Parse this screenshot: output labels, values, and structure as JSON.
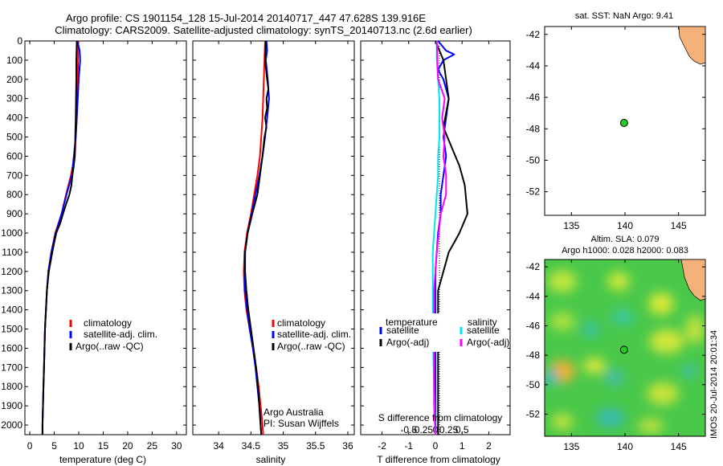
{
  "header": {
    "line1": "Argo profile: CS 1901154_128 15-Jul-2014 20140717_447 47.628S 139.916E",
    "line2": "Climatology: CARS2009. Satellite-adjusted climatology: synTS_20140713.nc (2.6d earlier)"
  },
  "colors": {
    "climatology": "#ff0000",
    "satellite": "#0000ff",
    "argo": "#000000",
    "cyan": "#00e5ee",
    "magenta": "#ff00ff",
    "float": "#22cc22",
    "land": "#f4b27a"
  },
  "chart_data": [
    {
      "type": "line",
      "xlabel": "temperature (deg C)",
      "ylim": [
        0,
        2050
      ],
      "y_ticks": [
        0,
        100,
        200,
        300,
        400,
        500,
        600,
        700,
        800,
        900,
        1000,
        1100,
        1200,
        1300,
        1400,
        1500,
        1600,
        1700,
        1800,
        1900,
        2000
      ],
      "xlim": [
        -1,
        32
      ],
      "x_ticks": [
        0,
        5,
        10,
        15,
        20,
        25,
        30
      ],
      "legend": {
        "placement": "lower-middle",
        "entries": [
          "climatology",
          "satellite-adj. clim.",
          "Argo(..raw -QC)"
        ]
      },
      "series": [
        {
          "name": "climatology",
          "color": "red",
          "points": [
            [
              9.9,
              0
            ],
            [
              9.8,
              200
            ],
            [
              9.6,
              400
            ],
            [
              9.4,
              500
            ],
            [
              9.2,
              600
            ],
            [
              8.4,
              700
            ],
            [
              7.4,
              800
            ],
            [
              6.5,
              900
            ],
            [
              5.2,
              1000
            ],
            [
              4.4,
              1100
            ],
            [
              3.8,
              1200
            ],
            [
              3.5,
              1300
            ],
            [
              3.3,
              1400
            ],
            [
              3.1,
              1500
            ],
            [
              3.0,
              1600
            ],
            [
              2.9,
              1700
            ],
            [
              2.8,
              1800
            ],
            [
              2.7,
              1900
            ],
            [
              2.6,
              2000
            ],
            [
              2.6,
              2050
            ]
          ]
        },
        {
          "name": "satellite-adj. clim.",
          "color": "blue",
          "points": [
            [
              9.7,
              0
            ],
            [
              10.2,
              50
            ],
            [
              10.3,
              100
            ],
            [
              10.0,
              200
            ],
            [
              9.8,
              300
            ],
            [
              9.6,
              400
            ],
            [
              9.4,
              500
            ],
            [
              9.0,
              600
            ],
            [
              8.6,
              700
            ],
            [
              7.5,
              800
            ],
            [
              6.5,
              900
            ],
            [
              5.3,
              1000
            ],
            [
              4.4,
              1100
            ],
            [
              3.8,
              1200
            ],
            [
              3.5,
              1300
            ],
            [
              3.3,
              1400
            ],
            [
              3.1,
              1500
            ],
            [
              3.0,
              1600
            ],
            [
              2.9,
              1700
            ],
            [
              2.8,
              1800
            ],
            [
              2.7,
              1900
            ],
            [
              2.6,
              2000
            ],
            [
              2.6,
              2050
            ]
          ]
        },
        {
          "name": "Argo(..raw -QC)",
          "color": "black",
          "points": [
            [
              9.6,
              0
            ],
            [
              9.5,
              100
            ],
            [
              9.5,
              200
            ],
            [
              9.4,
              400
            ],
            [
              9.3,
              500
            ],
            [
              9.2,
              600
            ],
            [
              9.0,
              650
            ],
            [
              8.7,
              700
            ],
            [
              8.5,
              750
            ],
            [
              8.1,
              800
            ],
            [
              7.4,
              850
            ],
            [
              6.8,
              900
            ],
            [
              6.2,
              950
            ],
            [
              5.4,
              1000
            ],
            [
              4.6,
              1100
            ],
            [
              3.9,
              1200
            ],
            [
              3.5,
              1300
            ],
            [
              3.3,
              1400
            ],
            [
              3.1,
              1500
            ],
            [
              3.0,
              1600
            ],
            [
              2.9,
              1700
            ],
            [
              2.8,
              1800
            ],
            [
              2.7,
              1900
            ],
            [
              2.6,
              2000
            ],
            [
              2.6,
              2050
            ]
          ]
        }
      ]
    },
    {
      "type": "line",
      "xlabel": "salinity",
      "ylim": [
        0,
        2050
      ],
      "xlim": [
        33.6,
        36.1
      ],
      "x_ticks": [
        34,
        34.5,
        35,
        35.5,
        36
      ],
      "legend": {
        "placement": "lower-middle",
        "entries": [
          "climatology",
          "satellite-adj. clim.",
          "Argo(..raw -QC)"
        ]
      },
      "annotations": [
        "Argo Australia",
        "PI: Susan Wijffels"
      ],
      "series": [
        {
          "name": "climatology",
          "color": "red",
          "points": [
            [
              34.72,
              0
            ],
            [
              34.71,
              100
            ],
            [
              34.7,
              200
            ],
            [
              34.69,
              300
            ],
            [
              34.68,
              400
            ],
            [
              34.66,
              500
            ],
            [
              34.64,
              600
            ],
            [
              34.6,
              700
            ],
            [
              34.55,
              800
            ],
            [
              34.5,
              900
            ],
            [
              34.44,
              1000
            ],
            [
              34.4,
              1100
            ],
            [
              34.39,
              1200
            ],
            [
              34.4,
              1300
            ],
            [
              34.43,
              1400
            ],
            [
              34.48,
              1500
            ],
            [
              34.53,
              1600
            ],
            [
              34.58,
              1700
            ],
            [
              34.62,
              1800
            ],
            [
              34.65,
              1900
            ],
            [
              34.68,
              2000
            ],
            [
              34.69,
              2050
            ]
          ]
        },
        {
          "name": "satellite-adj. clim.",
          "color": "blue",
          "points": [
            [
              34.74,
              0
            ],
            [
              34.75,
              50
            ],
            [
              34.73,
              100
            ],
            [
              34.76,
              200
            ],
            [
              34.78,
              300
            ],
            [
              34.75,
              400
            ],
            [
              34.72,
              500
            ],
            [
              34.68,
              600
            ],
            [
              34.63,
              700
            ],
            [
              34.57,
              800
            ],
            [
              34.51,
              900
            ],
            [
              34.45,
              1000
            ],
            [
              34.41,
              1100
            ],
            [
              34.4,
              1200
            ],
            [
              34.41,
              1300
            ],
            [
              34.44,
              1400
            ],
            [
              34.48,
              1500
            ],
            [
              34.53,
              1600
            ],
            [
              34.57,
              1700
            ],
            [
              34.6,
              1800
            ],
            [
              34.63,
              1900
            ],
            [
              34.65,
              2000
            ],
            [
              34.66,
              2050
            ]
          ]
        },
        {
          "name": "Argo(..raw -QC)",
          "color": "black",
          "points": [
            [
              34.73,
              0
            ],
            [
              34.72,
              100
            ],
            [
              34.75,
              200
            ],
            [
              34.77,
              250
            ],
            [
              34.74,
              300
            ],
            [
              34.75,
              350
            ],
            [
              34.72,
              400
            ],
            [
              34.74,
              450
            ],
            [
              34.71,
              500
            ],
            [
              34.68,
              600
            ],
            [
              34.64,
              700
            ],
            [
              34.6,
              800
            ],
            [
              34.52,
              900
            ],
            [
              34.45,
              1000
            ],
            [
              34.41,
              1100
            ],
            [
              34.41,
              1200
            ],
            [
              34.43,
              1300
            ],
            [
              34.46,
              1400
            ],
            [
              34.5,
              1500
            ],
            [
              34.54,
              1600
            ],
            [
              34.58,
              1700
            ],
            [
              34.61,
              1800
            ],
            [
              34.63,
              1900
            ],
            [
              34.65,
              2000
            ],
            [
              34.66,
              2050
            ]
          ]
        }
      ]
    },
    {
      "type": "line",
      "xlabel": "T difference from climatology",
      "top_label": "S difference from climatology",
      "ylim": [
        0,
        2050
      ],
      "xlim": [
        -2.8,
        2.8
      ],
      "x_ticks": [
        -2,
        -1,
        0,
        1,
        2
      ],
      "x2_ticks": [
        "-0.5",
        "-0.25",
        "0",
        "0.25",
        "0.5"
      ],
      "legend": {
        "placement": "lower-middle",
        "group_titles": [
          "temperature",
          "salinity"
        ],
        "entries": [
          "satellite",
          "Argo(-adj)",
          "satellite",
          "Argo(-adj)"
        ]
      },
      "series": [
        {
          "name": "satellite",
          "group": "temperature",
          "color": "blue",
          "points": [
            [
              0.1,
              0
            ],
            [
              0.4,
              50
            ],
            [
              0.7,
              70
            ],
            [
              0.3,
              100
            ],
            [
              0.1,
              150
            ],
            [
              0.3,
              200
            ],
            [
              0.5,
              300
            ],
            [
              0.4,
              400
            ],
            [
              0.3,
              500
            ],
            [
              0.4,
              600
            ],
            [
              0.3,
              700
            ],
            [
              0.2,
              800
            ],
            [
              0.2,
              900
            ],
            [
              0.1,
              1000
            ],
            [
              0.0,
              1200
            ],
            [
              0.0,
              1500
            ],
            [
              0.0,
              1800
            ],
            [
              0.0,
              2050
            ]
          ]
        },
        {
          "name": "Argo(-adj)",
          "group": "temperature",
          "color": "black",
          "points": [
            [
              0.0,
              0
            ],
            [
              0.3,
              100
            ],
            [
              0.5,
              300
            ],
            [
              0.3,
              450
            ],
            [
              0.6,
              550
            ],
            [
              0.9,
              650
            ],
            [
              1.1,
              750
            ],
            [
              1.2,
              900
            ],
            [
              0.9,
              1000
            ],
            [
              0.7,
              1050
            ],
            [
              0.5,
              1100
            ],
            [
              0.3,
              1200
            ],
            [
              0.1,
              1300
            ],
            [
              0.1,
              1500
            ],
            [
              0.1,
              1800
            ],
            [
              0.1,
              2050
            ]
          ]
        },
        {
          "name": "satellite",
          "group": "salinity",
          "color": "cyan",
          "points": [
            [
              0.05,
              0
            ],
            [
              0.05,
              100
            ],
            [
              0.1,
              200
            ],
            [
              0.15,
              300
            ],
            [
              0.15,
              400
            ],
            [
              0.15,
              500
            ],
            [
              0.1,
              600
            ],
            [
              0.1,
              700
            ],
            [
              0.0,
              900
            ],
            [
              -0.1,
              1100
            ],
            [
              -0.1,
              1300
            ],
            [
              -0.1,
              1500
            ],
            [
              -0.05,
              1800
            ],
            [
              0.0,
              2050
            ]
          ]
        },
        {
          "name": "Argo(-adj)",
          "group": "salinity",
          "color": "magenta",
          "points": [
            [
              0.05,
              0
            ],
            [
              0.1,
              200
            ],
            [
              0.35,
              300
            ],
            [
              0.25,
              400
            ],
            [
              0.35,
              500
            ],
            [
              0.3,
              600
            ],
            [
              0.4,
              700
            ],
            [
              0.4,
              800
            ],
            [
              0.2,
              900
            ],
            [
              0.05,
              1100
            ],
            [
              -0.05,
              1300
            ],
            [
              -0.05,
              1600
            ],
            [
              -0.05,
              1900
            ],
            [
              0.0,
              2050
            ]
          ]
        }
      ]
    },
    {
      "type": "scatter",
      "title": "sat. SST: NaN Argo: 9.41",
      "xlim": [
        132.5,
        147.5
      ],
      "ylim": [
        -53.5,
        -41.5
      ],
      "x_ticks": [
        135,
        140,
        145
      ],
      "y_ticks": [
        -42,
        -44,
        -46,
        -48,
        -50,
        -52
      ],
      "points": [
        [
          139.916,
          -47.628
        ]
      ]
    },
    {
      "type": "heatmap",
      "title_line1": "Altim. SLA: 0.079",
      "title_line2": "Argo h1000: 0.028 h2000: 0.083",
      "xlim": [
        132.5,
        147.5
      ],
      "ylim": [
        -53.5,
        -41.5
      ],
      "x_ticks": [
        135,
        140,
        145
      ],
      "y_ticks": [
        -42,
        -44,
        -46,
        -48,
        -50,
        -52
      ],
      "points": [
        [
          139.916,
          -47.628
        ]
      ]
    }
  ],
  "watermark": "IMOS 20-Jul-2014 20:01:34"
}
